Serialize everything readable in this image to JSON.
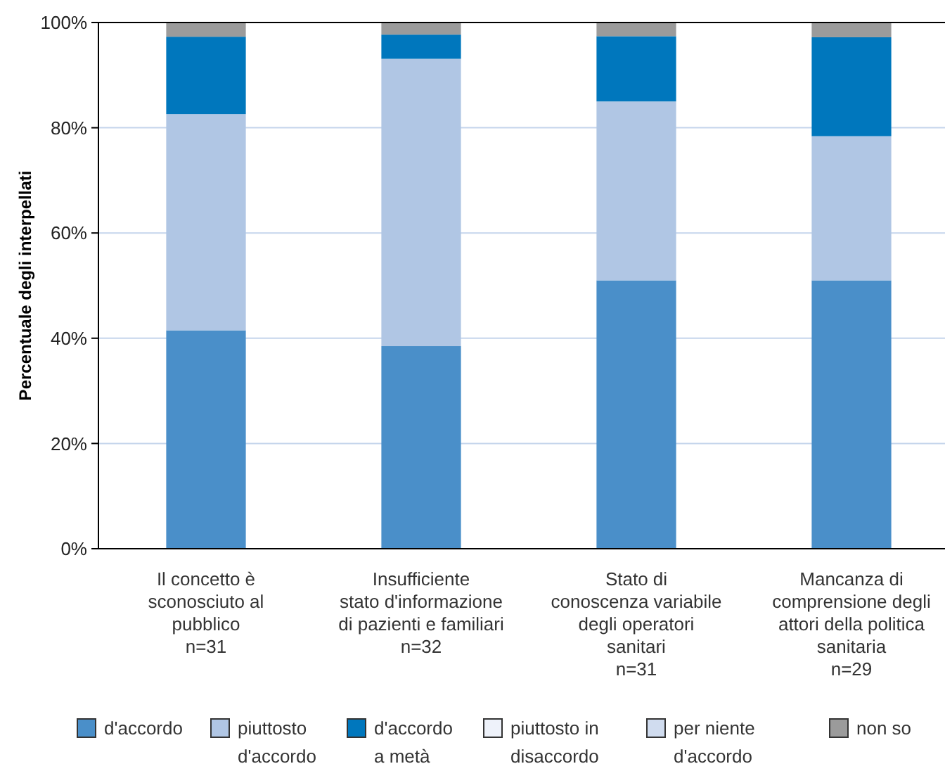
{
  "chart_data": {
    "type": "bar",
    "stacked": true,
    "ylabel": "Percentuale degli interpellati",
    "categories": [
      "Il concetto è\nsconosciuto al\npubblico\nn=31",
      "Insufficiente\nstato d'informazione\ndi pazienti e familiari\nn=32",
      "Stato di\nconoscenza variabile\ndegli operatori\nsanitari\nn=31",
      "Mancanza di\ncomprensione degli\nattori della politica\nsanitaria\nn=29"
    ],
    "series": [
      {
        "name": "d'accordo",
        "color": "#4a8fc9",
        "values": [
          41.5,
          38.5,
          51.0,
          51.0
        ]
      },
      {
        "name": "piuttosto\nd'accordo",
        "color": "#b0c6e4",
        "values": [
          41.1,
          54.6,
          34.0,
          27.4
        ]
      },
      {
        "name": "d'accordo\na metà",
        "color": "#0077bd",
        "values": [
          14.7,
          4.6,
          12.4,
          18.8
        ]
      },
      {
        "name": "piuttosto in\ndisaccordo",
        "color": "#eef2fa",
        "values": [
          0,
          0,
          0,
          0
        ]
      },
      {
        "name": "per niente\nd'accordo",
        "color": "#d0dcef",
        "values": [
          0,
          0,
          0,
          0
        ]
      },
      {
        "name": "non so",
        "color": "#9b9b9b",
        "values": [
          2.7,
          2.3,
          2.6,
          2.8
        ]
      }
    ],
    "ylim": [
      0,
      100
    ],
    "yticks": [
      {
        "value": 0,
        "label": "0%"
      },
      {
        "value": 20,
        "label": "20%"
      },
      {
        "value": 40,
        "label": "40%"
      },
      {
        "value": 60,
        "label": "60%"
      },
      {
        "value": 80,
        "label": "80%"
      },
      {
        "value": 100,
        "label": "100%"
      }
    ],
    "grid": "y",
    "legend": "bottom"
  }
}
